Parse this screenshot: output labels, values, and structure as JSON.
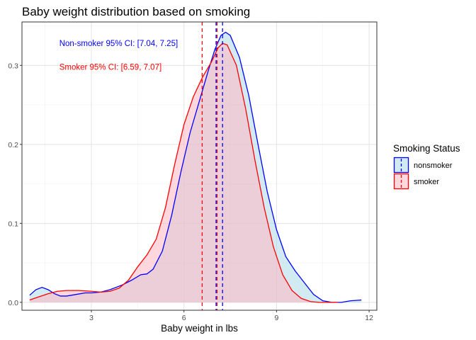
{
  "chart_data": {
    "type": "area",
    "title": "Baby weight distribution based on smoking",
    "xlabel": "Baby weight in lbs",
    "ylabel": "",
    "xlim": [
      0.75,
      12.25
    ],
    "ylim": [
      -0.01,
      0.355
    ],
    "x_ticks": [
      3,
      6,
      9,
      12
    ],
    "y_ticks": [
      0.0,
      0.1,
      0.2,
      0.3
    ],
    "x_tick_labels": [
      "3",
      "6",
      "9",
      "12"
    ],
    "y_tick_labels": [
      "0.0",
      "0.1",
      "0.2",
      "0.3"
    ],
    "grid": true,
    "legend": {
      "title": "Smoking Status",
      "position": "right"
    },
    "series": [
      {
        "name": "nonsmoker",
        "color": "#0000FF",
        "fill": "#ADD8E6",
        "points": [
          [
            1.0,
            0.009
          ],
          [
            1.2,
            0.016
          ],
          [
            1.4,
            0.019
          ],
          [
            1.6,
            0.016
          ],
          [
            1.8,
            0.011
          ],
          [
            2.0,
            0.008
          ],
          [
            2.2,
            0.008
          ],
          [
            2.5,
            0.01
          ],
          [
            2.8,
            0.012
          ],
          [
            3.0,
            0.012
          ],
          [
            3.3,
            0.013
          ],
          [
            3.6,
            0.016
          ],
          [
            4.0,
            0.022
          ],
          [
            4.3,
            0.028
          ],
          [
            4.6,
            0.035
          ],
          [
            4.8,
            0.036
          ],
          [
            5.0,
            0.042
          ],
          [
            5.3,
            0.065
          ],
          [
            5.6,
            0.11
          ],
          [
            5.9,
            0.165
          ],
          [
            6.2,
            0.215
          ],
          [
            6.5,
            0.255
          ],
          [
            6.8,
            0.295
          ],
          [
            7.0,
            0.32
          ],
          [
            7.2,
            0.338
          ],
          [
            7.35,
            0.342
          ],
          [
            7.5,
            0.338
          ],
          [
            7.8,
            0.31
          ],
          [
            8.1,
            0.262
          ],
          [
            8.4,
            0.2
          ],
          [
            8.7,
            0.14
          ],
          [
            9.0,
            0.092
          ],
          [
            9.3,
            0.058
          ],
          [
            9.6,
            0.04
          ],
          [
            9.9,
            0.025
          ],
          [
            10.2,
            0.01
          ],
          [
            10.5,
            0.002
          ],
          [
            10.8,
            0.0
          ],
          [
            11.1,
            0.0
          ],
          [
            11.4,
            0.002
          ],
          [
            11.75,
            0.003
          ]
        ],
        "ci_lines": [
          7.04,
          7.25
        ]
      },
      {
        "name": "smoker",
        "color": "#FF0000",
        "fill": "#FFB6C1",
        "points": [
          [
            1.0,
            0.003
          ],
          [
            1.3,
            0.007
          ],
          [
            1.6,
            0.011
          ],
          [
            1.9,
            0.014
          ],
          [
            2.2,
            0.015
          ],
          [
            2.6,
            0.015
          ],
          [
            3.0,
            0.014
          ],
          [
            3.3,
            0.013
          ],
          [
            3.6,
            0.014
          ],
          [
            3.9,
            0.018
          ],
          [
            4.2,
            0.028
          ],
          [
            4.5,
            0.045
          ],
          [
            4.8,
            0.06
          ],
          [
            5.1,
            0.08
          ],
          [
            5.4,
            0.12
          ],
          [
            5.7,
            0.175
          ],
          [
            6.0,
            0.225
          ],
          [
            6.3,
            0.26
          ],
          [
            6.6,
            0.285
          ],
          [
            6.9,
            0.305
          ],
          [
            7.1,
            0.322
          ],
          [
            7.25,
            0.328
          ],
          [
            7.4,
            0.326
          ],
          [
            7.7,
            0.3
          ],
          [
            8.0,
            0.245
          ],
          [
            8.3,
            0.18
          ],
          [
            8.6,
            0.12
          ],
          [
            8.9,
            0.07
          ],
          [
            9.2,
            0.035
          ],
          [
            9.5,
            0.015
          ],
          [
            9.8,
            0.005
          ],
          [
            10.1,
            0.001
          ],
          [
            10.4,
            0.0
          ],
          [
            11.0,
            0.0
          ]
        ],
        "ci_lines": [
          6.59,
          7.07
        ]
      }
    ],
    "annotations": [
      {
        "text": "Non-smoker 95% CI: [7.04, 7.25]",
        "x": 1.96,
        "y": 0.328,
        "color": "#0000FF"
      },
      {
        "text": "Smoker 95% CI: [6.59, 7.07]",
        "x": 1.96,
        "y": 0.298,
        "color": "#FF0000"
      }
    ]
  }
}
